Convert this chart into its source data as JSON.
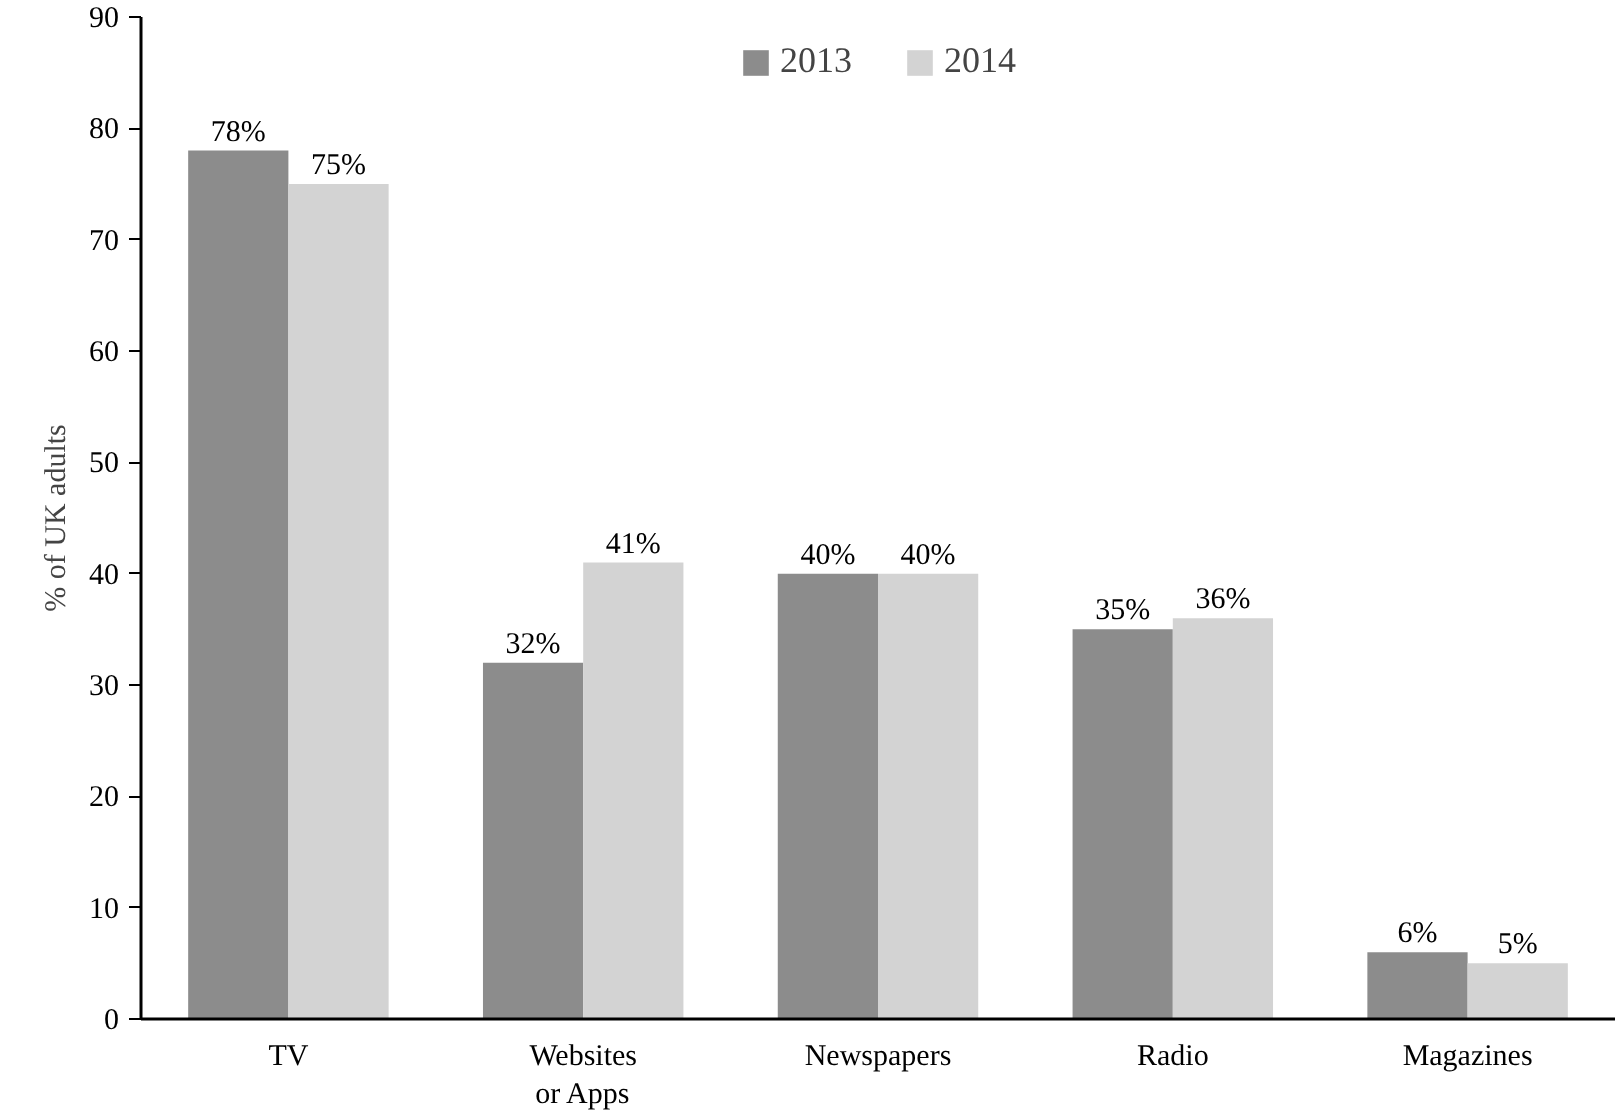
{
  "chart_data": {
    "type": "bar",
    "ylabel": "% of UK adults",
    "categories": [
      "TV",
      "Websites\nor Apps",
      "Newspapers",
      "Radio",
      "Magazines"
    ],
    "series": [
      {
        "name": "2013",
        "color": "#8c8c8c",
        "values": [
          78,
          32,
          40,
          35,
          6
        ],
        "value_labels": [
          "78%",
          "32%",
          "40%",
          "35%",
          "6%"
        ]
      },
      {
        "name": "2014",
        "color": "#d3d3d3",
        "values": [
          75,
          41,
          40,
          36,
          5
        ],
        "value_labels": [
          "75%",
          "41%",
          "40%",
          "36%",
          "5%"
        ]
      }
    ],
    "ylim": [
      0,
      90
    ],
    "yticks": [
      0,
      10,
      20,
      30,
      40,
      50,
      60,
      70,
      80,
      90
    ],
    "grid": false,
    "legend": "top"
  }
}
